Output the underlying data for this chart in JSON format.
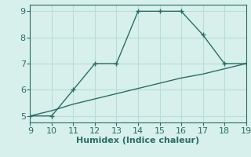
{
  "line1_x": [
    9,
    10,
    11,
    12,
    13,
    14,
    15,
    16,
    17,
    18,
    19
  ],
  "line1_y": [
    5,
    5,
    6,
    7,
    7,
    9,
    9,
    9,
    8.1,
    7,
    7
  ],
  "line2_x": [
    9,
    10,
    11,
    12,
    13,
    14,
    15,
    16,
    17,
    18,
    19
  ],
  "line2_y": [
    5.0,
    5.2,
    5.45,
    5.65,
    5.85,
    6.05,
    6.25,
    6.45,
    6.6,
    6.8,
    7.0
  ],
  "line_color": "#2a6e65",
  "bg_color": "#d8f0ec",
  "grid_color": "#b8ddd8",
  "xlabel": "Humidex (Indice chaleur)",
  "xlim": [
    9,
    19
  ],
  "ylim": [
    4.75,
    9.25
  ],
  "xticks": [
    9,
    10,
    11,
    12,
    13,
    14,
    15,
    16,
    17,
    18,
    19
  ],
  "yticks": [
    5,
    6,
    7,
    8,
    9
  ],
  "marker": "+",
  "linewidth": 1.0,
  "markersize": 5,
  "xlabel_fontsize": 8,
  "tick_fontsize": 8
}
